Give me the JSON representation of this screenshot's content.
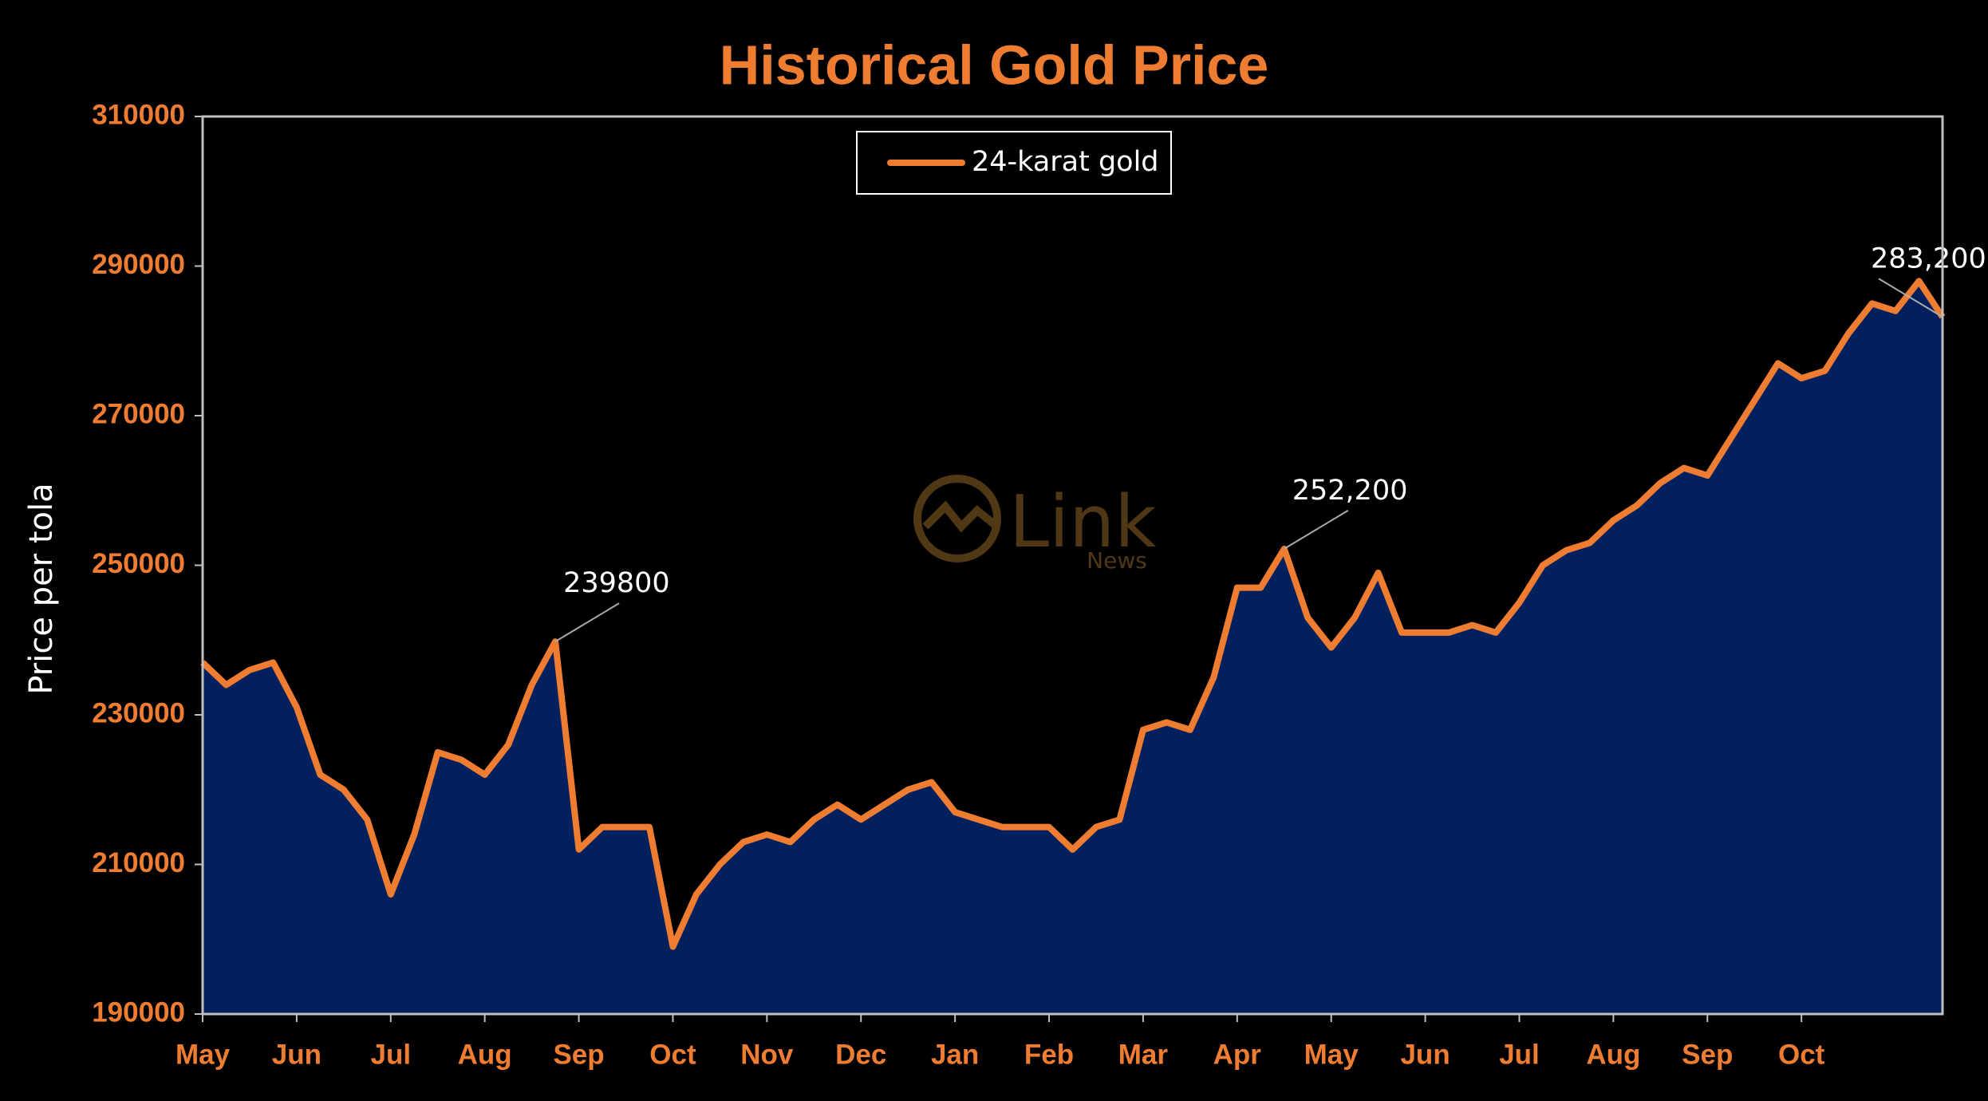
{
  "chart_data": {
    "type": "area-line",
    "title": "Historical Gold Price",
    "y_label": "Price per tola",
    "watermark": {
      "text": "Link",
      "subtext": "News"
    },
    "categories": [
      "May",
      null,
      null,
      null,
      "Jun",
      null,
      null,
      null,
      "Jul",
      null,
      null,
      null,
      "Aug",
      null,
      null,
      null,
      "Sep",
      null,
      null,
      null,
      "Oct",
      null,
      null,
      null,
      "Nov",
      null,
      null,
      null,
      "Dec",
      null,
      null,
      null,
      "Jan",
      null,
      null,
      null,
      "Feb",
      null,
      null,
      null,
      "Mar",
      null,
      null,
      null,
      "Apr",
      null,
      null,
      null,
      "May",
      null,
      null,
      null,
      "Jun",
      null,
      null,
      null,
      "Jul",
      null,
      null,
      null,
      "Aug",
      null,
      null,
      null,
      "Sep",
      null,
      null,
      null,
      "Oct",
      null,
      null,
      null,
      null,
      null,
      null
    ],
    "series": [
      {
        "name": "24-karat gold",
        "color": "#ef7d31",
        "fill": "#03205e",
        "values": [
          237000,
          234000,
          236000,
          237000,
          231000,
          222000,
          220000,
          216000,
          206000,
          214000,
          225000,
          224000,
          222000,
          226000,
          234000,
          239800,
          212000,
          215000,
          215000,
          215000,
          199000,
          206000,
          210000,
          213000,
          214000,
          213000,
          216000,
          218000,
          216000,
          218000,
          220000,
          221000,
          217000,
          216000,
          215000,
          215000,
          215000,
          212000,
          215000,
          216000,
          228000,
          229000,
          228000,
          235000,
          247000,
          247000,
          252200,
          243000,
          239000,
          243000,
          249000,
          241000,
          241000,
          241000,
          242000,
          241000,
          245000,
          250000,
          252000,
          253000,
          256000,
          258000,
          261000,
          263000,
          262000,
          267000,
          272000,
          277000,
          275000,
          276000,
          281000,
          285000,
          284000,
          288000,
          283200
        ],
        "value_labels": [
          null,
          null,
          null,
          null,
          null,
          null,
          null,
          null,
          null,
          null,
          null,
          null,
          null,
          null,
          null,
          "239800",
          null,
          null,
          null,
          null,
          null,
          null,
          null,
          null,
          null,
          null,
          null,
          null,
          null,
          null,
          null,
          null,
          null,
          null,
          null,
          null,
          null,
          null,
          null,
          null,
          null,
          null,
          null,
          null,
          null,
          null,
          "252,200",
          null,
          null,
          null,
          null,
          null,
          null,
          null,
          null,
          null,
          null,
          null,
          null,
          null,
          null,
          null,
          null,
          null,
          null,
          null,
          null,
          null,
          null,
          null,
          null,
          null,
          null,
          null,
          "283,200"
        ]
      }
    ],
    "ylim": [
      190000,
      310000
    ],
    "yticks": [
      190000,
      210000,
      230000,
      250000,
      270000,
      290000,
      310000
    ],
    "legend": "top-center"
  }
}
